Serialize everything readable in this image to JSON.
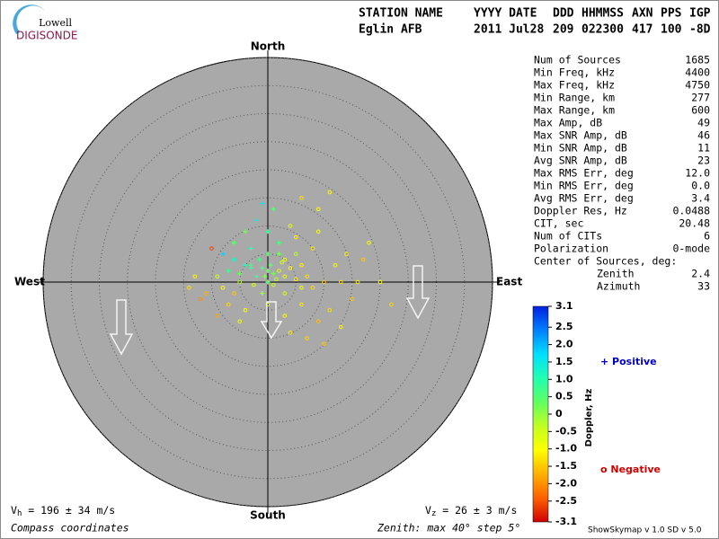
{
  "logo": {
    "top": "Lowell",
    "bottom": "DIGISONDE"
  },
  "header": {
    "columns": [
      "STATION NAME",
      "YYYY DATE",
      "DDD",
      "HHMMSS",
      "AXN",
      "PPS",
      "IGP"
    ],
    "values": [
      "Eglin AFB",
      "2011 Jul28",
      "209",
      "022300",
      "417",
      "100",
      "-8D"
    ]
  },
  "stats": [
    [
      "Num of Sources",
      "1685"
    ],
    [
      "Min Freq, kHz",
      "4400"
    ],
    [
      "Max Freq, kHz",
      "4750"
    ],
    [
      "Min Range, km",
      "277"
    ],
    [
      "Max Range, km",
      "600"
    ],
    [
      "Max Amp, dB",
      "49"
    ],
    [
      "Max SNR Amp, dB",
      "46"
    ],
    [
      "Min SNR Amp, dB",
      "11"
    ],
    [
      "Avg SNR Amp, dB",
      "23"
    ],
    [
      "Max RMS Err, deg",
      "12.0"
    ],
    [
      "Min RMS Err, deg",
      "0.0"
    ],
    [
      "Avg RMS Err, deg",
      "3.4"
    ],
    [
      "Doppler Res, Hz",
      "0.0488"
    ],
    [
      "CIT, sec",
      "20.48"
    ],
    [
      "Num of CITs",
      "6"
    ],
    [
      "Polarization",
      "0-mode"
    ]
  ],
  "center": {
    "title": "Center of Sources, deg:",
    "rows": [
      [
        "Zenith",
        "2.4"
      ],
      [
        "Azimuth",
        "33"
      ]
    ]
  },
  "chart_data": {
    "type": "skymap",
    "directions": {
      "north": "North",
      "south": "South",
      "west": "West",
      "east": "East"
    },
    "rlim": [
      0,
      40
    ],
    "rticks": [
      5,
      10,
      15,
      20,
      25,
      30,
      35,
      40
    ],
    "velocity_h": {
      "symbol": "V",
      "sub": "h",
      "text": " = 196 ± 34 m/s"
    },
    "velocity_z": {
      "symbol": "V",
      "sub": "z",
      "text": " = 26 ± 3 m/s"
    },
    "coords": "Compass coordinates",
    "zenith_note": "Zenith: max 40°  step 5°",
    "version": "ShowSkymap v 1.0  SD v 5.0",
    "legend": {
      "positive": "+ Positive",
      "negative": "o Negative"
    },
    "colorbar": {
      "label": "Doppler, Hz",
      "clim": [
        -3.1,
        3.1
      ],
      "colormap": [
        "#d00000",
        "#ff6000",
        "#ffb000",
        "#ffff00",
        "#c0ff20",
        "#60ff60",
        "#20ffb0",
        "#00e0ff",
        "#0080ff",
        "#0020e0"
      ],
      "ticks": [
        3.1,
        2.5,
        {
          "value": 2,
          "label": "2.0"
        },
        1.5,
        {
          "value": 1,
          "label": "1.0"
        },
        0.5,
        0,
        -0.5,
        {
          "value": -1,
          "label": "-1.0"
        },
        -1.5,
        {
          "value": -2,
          "label": "-2.0"
        },
        -2.5,
        -3.1
      ]
    },
    "points": [
      [
        0,
        2,
        0.3
      ],
      [
        1,
        1.5,
        0.2
      ],
      [
        -1,
        2.5,
        0.6
      ],
      [
        2,
        2,
        -0.5
      ],
      [
        -2,
        1,
        0.8
      ],
      [
        3,
        1,
        -0.8
      ],
      [
        0.5,
        3,
        0.4
      ],
      [
        -3,
        2.5,
        0.9
      ],
      [
        1.5,
        0.5,
        -0.3
      ],
      [
        -0.5,
        1,
        0.1
      ],
      [
        4,
        2.5,
        -1.0
      ],
      [
        -4,
        3,
        1.1
      ],
      [
        2.5,
        3.5,
        -0.6
      ],
      [
        -1.5,
        4,
        0.7
      ],
      [
        0,
        5,
        0.5
      ],
      [
        3,
        4,
        -0.9
      ],
      [
        -5,
        1.5,
        0.3
      ],
      [
        5,
        0.5,
        -1.2
      ],
      [
        -2.5,
        -0.5,
        -0.6
      ],
      [
        1,
        -0.5,
        -0.4
      ],
      [
        -6,
        4,
        1.2
      ],
      [
        6,
        3,
        -1.1
      ],
      [
        -7,
        2,
        0.8
      ],
      [
        7,
        1,
        -1.3
      ],
      [
        -8,
        -1,
        -0.9
      ],
      [
        8,
        -1,
        -1.4
      ],
      [
        -9,
        1,
        -0.5
      ],
      [
        10,
        0,
        -1.5
      ],
      [
        -3,
        6,
        1.0
      ],
      [
        2,
        7,
        0.6
      ],
      [
        0,
        9,
        0.9
      ],
      [
        -2,
        11,
        1.4
      ],
      [
        1,
        13,
        0.5
      ],
      [
        5,
        8,
        -1.1
      ],
      [
        8,
        6,
        -1.2
      ],
      [
        9,
        9,
        -1.0
      ],
      [
        -6,
        7,
        0.4
      ],
      [
        -10,
        6,
        -2.6
      ],
      [
        -13,
        1,
        -1.1
      ],
      [
        -14,
        -1,
        -1.3
      ],
      [
        -11,
        -2,
        -1.7
      ],
      [
        13,
        0,
        -1.3
      ],
      [
        16,
        0,
        -1.2
      ],
      [
        20,
        0,
        -1.0
      ],
      [
        22,
        -4,
        -1.4
      ],
      [
        15,
        -3,
        -1.5
      ],
      [
        11,
        -5,
        -1.3
      ],
      [
        9,
        -7,
        -1.6
      ],
      [
        6,
        -4,
        -1.2
      ],
      [
        3,
        -6,
        -1.0
      ],
      [
        0,
        -4,
        -0.8
      ],
      [
        -4,
        -5,
        -1.0
      ],
      [
        -7,
        -4,
        -1.4
      ],
      [
        -9,
        -6,
        -1.8
      ],
      [
        -5,
        -7,
        -0.9
      ],
      [
        4,
        -9,
        -1.2
      ],
      [
        7,
        -10,
        -1.4
      ],
      [
        13,
        -8,
        -1.1
      ],
      [
        10,
        -11,
        -1.5
      ],
      [
        -12,
        -3,
        -2.0
      ],
      [
        -6,
        -2,
        -1.5
      ],
      [
        12,
        3,
        -0.9
      ],
      [
        14,
        5,
        -1.2
      ],
      [
        18,
        7,
        -1.0
      ],
      [
        17,
        4,
        -1.5
      ],
      [
        4,
        10,
        -0.7
      ],
      [
        9,
        13,
        -1.0
      ],
      [
        6,
        15,
        -1.3
      ],
      [
        11,
        16,
        -1.0
      ],
      [
        -1,
        14,
        1.6
      ],
      [
        -4,
        9,
        0.2
      ],
      [
        -8,
        5,
        1.8
      ],
      [
        -3,
        3,
        0.7
      ],
      [
        2,
        5,
        0.2
      ],
      [
        5,
        5,
        -0.3
      ],
      [
        -1,
        -2,
        0.0
      ],
      [
        3,
        -2,
        -0.6
      ],
      [
        6,
        -1,
        -0.9
      ],
      [
        -5,
        0,
        -0.2
      ],
      [
        0,
        0,
        0.4
      ]
    ]
  }
}
